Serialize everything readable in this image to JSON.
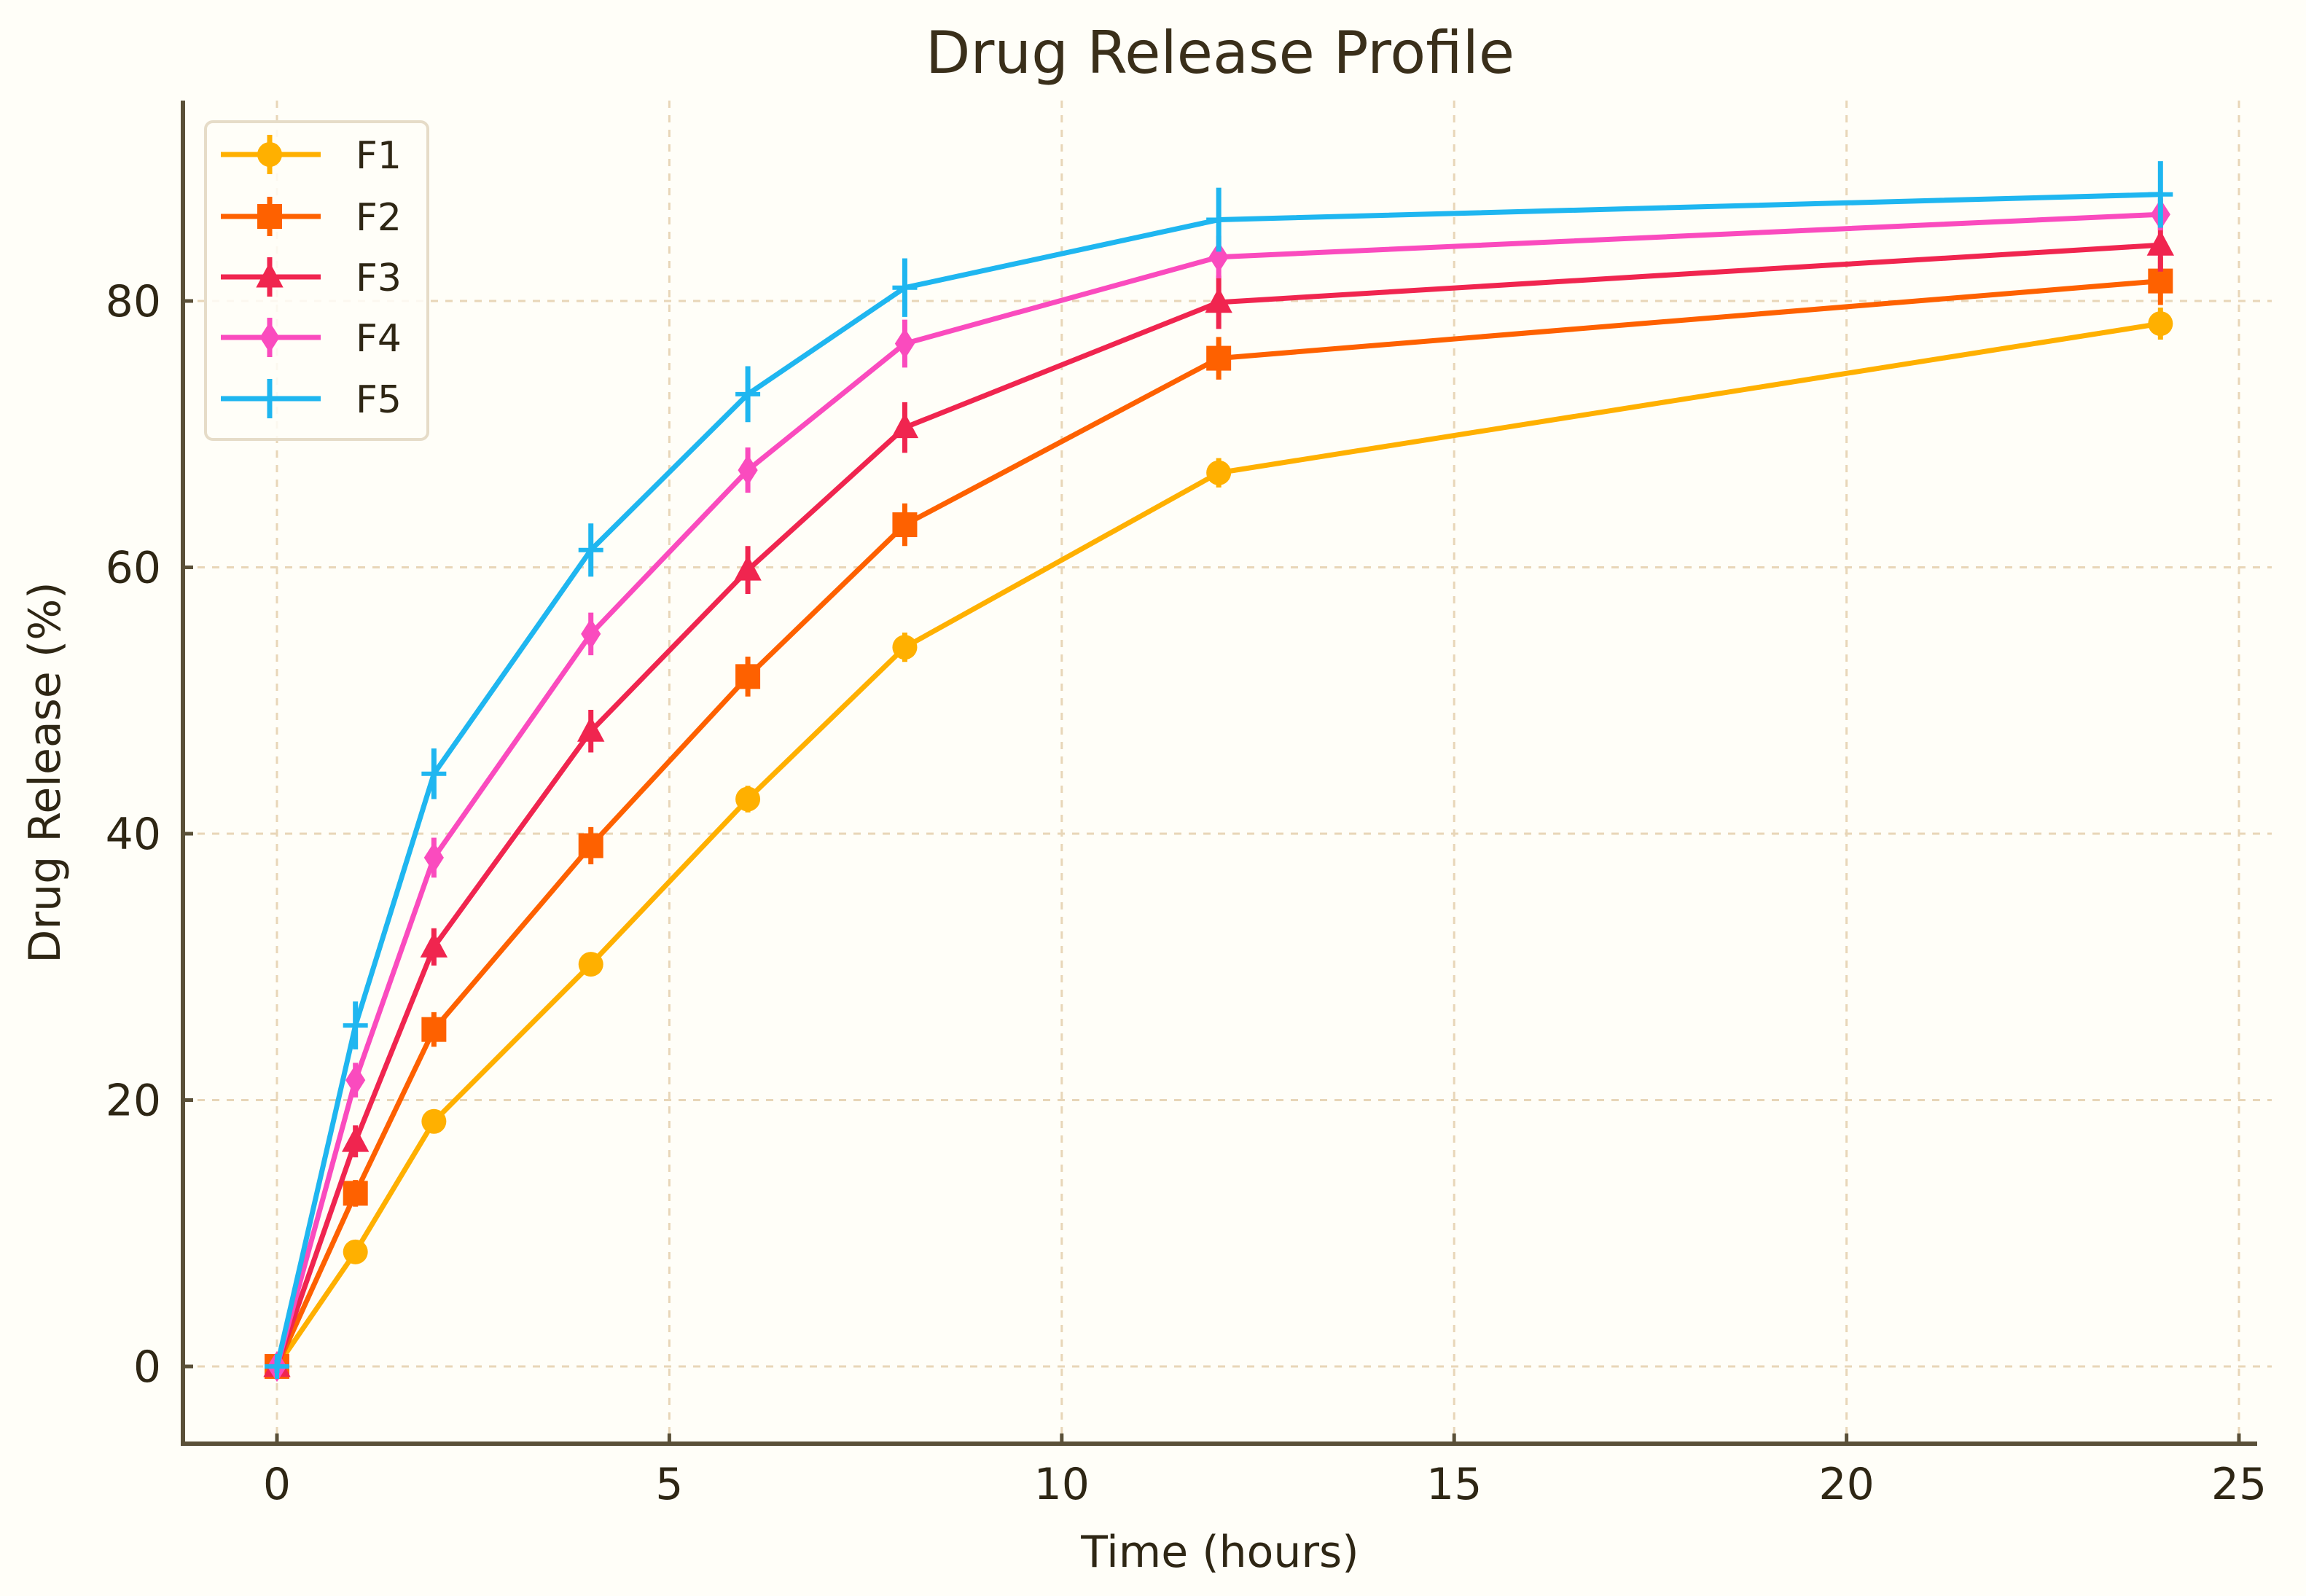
{
  "chart_data": {
    "type": "line",
    "title": "Drug Release Profile",
    "xlabel": "Time (hours)",
    "ylabel": "Drug Release (%)",
    "x": [
      0,
      1,
      2,
      4,
      6,
      8,
      12,
      24
    ],
    "xlim": [
      -1.2,
      25.1
    ],
    "ylim": [
      -5.8,
      95.5
    ],
    "xticks": [
      0,
      5,
      10,
      15,
      20,
      25
    ],
    "yticks": [
      0,
      20,
      40,
      60,
      80
    ],
    "grid": true,
    "legend_position": "upper left",
    "error_bars": true,
    "series": [
      {
        "name": "F1",
        "marker": "circle",
        "color": "#FFB000",
        "values": [
          0,
          8.6,
          18.4,
          30.2,
          42.6,
          54.0,
          67.1,
          78.3
        ],
        "errors": [
          0.5,
          0.8,
          0.8,
          0.9,
          1.0,
          1.1,
          1.1,
          1.2
        ]
      },
      {
        "name": "F2",
        "marker": "square",
        "color": "#FE6100",
        "values": [
          0,
          13.0,
          25.3,
          39.1,
          51.8,
          63.2,
          75.7,
          81.5
        ],
        "errors": [
          0.5,
          1.0,
          1.3,
          1.4,
          1.5,
          1.6,
          1.6,
          1.8
        ]
      },
      {
        "name": "F3",
        "marker": "triangle",
        "color": "#F0254F",
        "values": [
          0,
          16.9,
          31.5,
          47.7,
          59.8,
          70.5,
          79.9,
          84.2
        ],
        "errors": [
          0.5,
          1.2,
          1.4,
          1.6,
          1.8,
          1.9,
          2.0,
          2.0
        ]
      },
      {
        "name": "F4",
        "marker": "diamond",
        "color": "#FA4BBE",
        "values": [
          0,
          21.5,
          38.2,
          55.0,
          67.3,
          76.8,
          83.3,
          86.5
        ],
        "errors": [
          0.5,
          1.3,
          1.5,
          1.6,
          1.7,
          1.8,
          1.6,
          1.2
        ]
      },
      {
        "name": "F5",
        "marker": "plus",
        "color": "#1FB6F0",
        "values": [
          0,
          25.6,
          44.5,
          61.3,
          73.0,
          81.0,
          86.1,
          88.0
        ],
        "errors": [
          0.5,
          1.8,
          1.9,
          2.0,
          2.1,
          2.2,
          2.4,
          2.5
        ]
      }
    ]
  },
  "styles": {
    "background": "#fffef8",
    "axis_color": "#5a5038",
    "grid_color": "#e8d6b8",
    "legend_border": "#e6dcc8"
  }
}
